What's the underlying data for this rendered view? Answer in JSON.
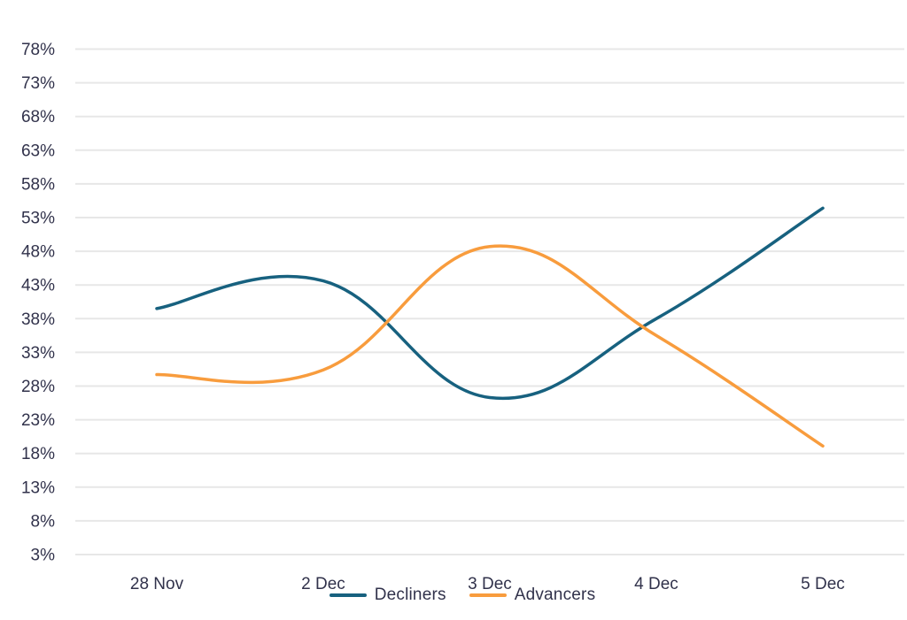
{
  "chart_data": {
    "type": "line",
    "title": "",
    "xlabel": "",
    "ylabel": "",
    "categories": [
      "28 Nov",
      "2 Dec",
      "3 Dec",
      "4 Dec",
      "5 Dec"
    ],
    "series": [
      {
        "name": "Decliners",
        "color": "#17617F",
        "values": [
          39.5,
          43.6,
          26.3,
          38.0,
          54.4
        ]
      },
      {
        "name": "Advancers",
        "color": "#F89C3D",
        "values": [
          29.7,
          30.4,
          48.7,
          35.5,
          19.1
        ]
      }
    ],
    "y_axis": {
      "min": 3,
      "max": 78,
      "step": 5,
      "unit": "%",
      "tick_labels": [
        "78%",
        "73%",
        "68%",
        "63%",
        "58%",
        "53%",
        "48%",
        "43%",
        "38%",
        "33%",
        "28%",
        "23%",
        "18%",
        "13%",
        "8%",
        "3%"
      ]
    },
    "ylim": [
      3,
      78
    ],
    "grid": "horizontal",
    "legend_position": "bottom-center",
    "colors": {
      "background": "#ffffff",
      "gridline": "#E7E7E7",
      "text": "#31324B"
    }
  }
}
